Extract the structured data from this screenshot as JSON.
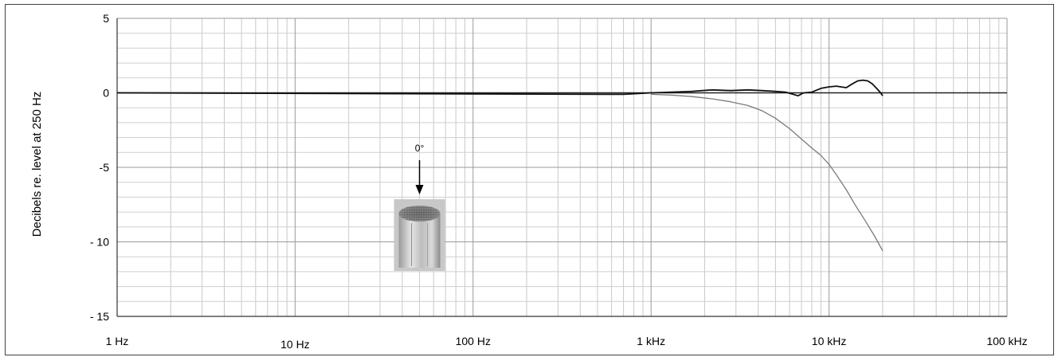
{
  "chart_data": {
    "type": "line",
    "x_scale": "log",
    "xlim_hz": [
      1,
      100000
    ],
    "ylim": [
      -15,
      5
    ],
    "grid": true,
    "ylabel": "Decibels re. level at 250 Hz",
    "x_ticks": [
      {
        "value": 1,
        "label": "1 Hz"
      },
      {
        "value": 10,
        "label": "10 Hz"
      },
      {
        "value": 100,
        "label": "100 Hz"
      },
      {
        "value": 1000,
        "label": "1 kHz"
      },
      {
        "value": 10000,
        "label": "10 kHz"
      },
      {
        "value": 100000,
        "label": "100 kHz"
      }
    ],
    "y_ticks": [
      {
        "value": 5,
        "label": "5"
      },
      {
        "value": 0,
        "label": "0"
      },
      {
        "value": -5,
        "label": "-5"
      },
      {
        "value": -10,
        "label": "- 10"
      },
      {
        "value": -15,
        "label": "- 15"
      }
    ],
    "series": [
      {
        "color": "#111111",
        "x": [
          1,
          700,
          850,
          1000,
          1300,
          1700,
          2200,
          2800,
          3500,
          4200,
          5000,
          5700,
          6300,
          6700,
          7200,
          8000,
          9000,
          10000,
          11000,
          12500,
          13500,
          14500,
          15500,
          16500,
          17500,
          18500,
          19500,
          20000
        ],
        "y": [
          0,
          -0.1,
          -0.05,
          0.0,
          0.05,
          0.1,
          0.2,
          0.15,
          0.2,
          0.15,
          0.1,
          0.05,
          -0.1,
          -0.2,
          0.0,
          0.05,
          0.3,
          0.4,
          0.45,
          0.35,
          0.6,
          0.8,
          0.85,
          0.8,
          0.6,
          0.3,
          0.0,
          -0.2
        ]
      },
      {
        "color": "#7a7a7a",
        "x": [
          1000,
          1300,
          1700,
          2200,
          2800,
          3500,
          4200,
          5000,
          6000,
          7000,
          8000,
          9000,
          10000,
          11000,
          12500,
          14000,
          16000,
          18000,
          20000
        ],
        "y": [
          -0.1,
          -0.15,
          -0.25,
          -0.4,
          -0.6,
          -0.85,
          -1.2,
          -1.7,
          -2.4,
          -3.1,
          -3.7,
          -4.2,
          -4.8,
          -5.5,
          -6.5,
          -7.5,
          -8.6,
          -9.6,
          -10.6
        ]
      }
    ],
    "annotation": {
      "label": "0°",
      "freq_hz": 50
    },
    "inset_image": "cylindrical microphone capsule"
  }
}
